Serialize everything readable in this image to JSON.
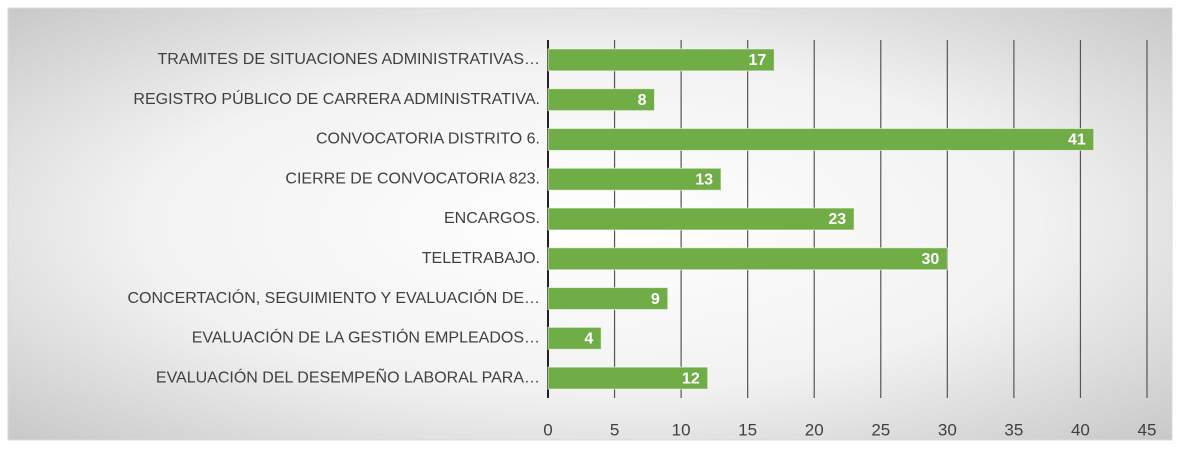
{
  "chart_data": {
    "type": "bar",
    "orientation": "horizontal",
    "categories": [
      "TRAMITES DE SITUACIONES ADMINISTRATIVAS…",
      "REGISTRO PÚBLICO DE CARRERA ADMINISTRATIVA.",
      "CONVOCATORIA DISTRITO 6.",
      "CIERRE DE CONVOCATORIA 823.",
      "ENCARGOS.",
      "TELETRABAJO.",
      "CONCERTACIÓN, SEGUIMIENTO Y EVALUACIÓN DE…",
      "EVALUACIÓN DE LA GESTIÓN EMPLEADOS…",
      "EVALUACIÓN DEL DESEMPEÑO LABORAL PARA…"
    ],
    "values": [
      17,
      8,
      41,
      13,
      23,
      30,
      9,
      4,
      12
    ],
    "color": "#70ad47",
    "xlim": [
      0,
      45
    ],
    "xticks": [
      0,
      5,
      10,
      15,
      20,
      25,
      30,
      35,
      40,
      45
    ],
    "grid": true
  }
}
